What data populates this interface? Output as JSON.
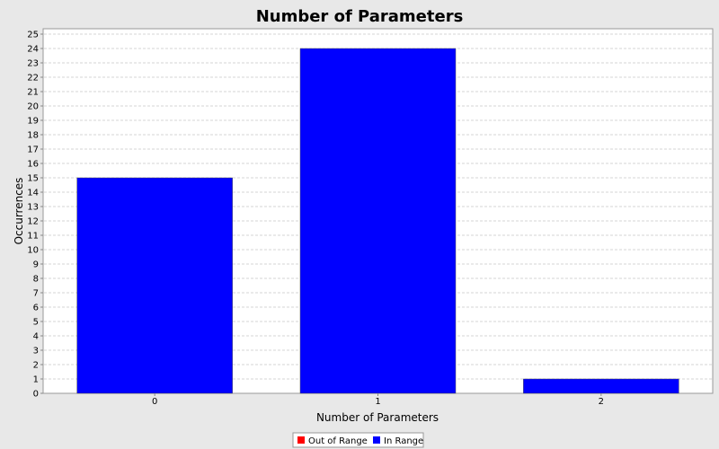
{
  "chart_data": {
    "type": "bar",
    "title": "Number of Parameters",
    "xlabel": "Number of Parameters",
    "ylabel": "Occurrences",
    "categories": [
      "0",
      "1",
      "2"
    ],
    "series": [
      {
        "name": "In Range",
        "values": [
          15,
          24,
          1
        ],
        "color": "#0000ff"
      }
    ],
    "ylim": [
      0,
      25
    ],
    "yticks": [
      "0",
      "1",
      "2",
      "3",
      "4",
      "5",
      "6",
      "7",
      "8",
      "9",
      "10",
      "11",
      "12",
      "13",
      "14",
      "15",
      "16",
      "17",
      "18",
      "19",
      "20",
      "21",
      "22",
      "23",
      "24",
      "25"
    ],
    "grid": true,
    "legend": {
      "position": "bottom",
      "items": [
        {
          "label": "Out of Range",
          "color": "#ff0000"
        },
        {
          "label": "In Range",
          "color": "#0000ff"
        }
      ]
    }
  }
}
